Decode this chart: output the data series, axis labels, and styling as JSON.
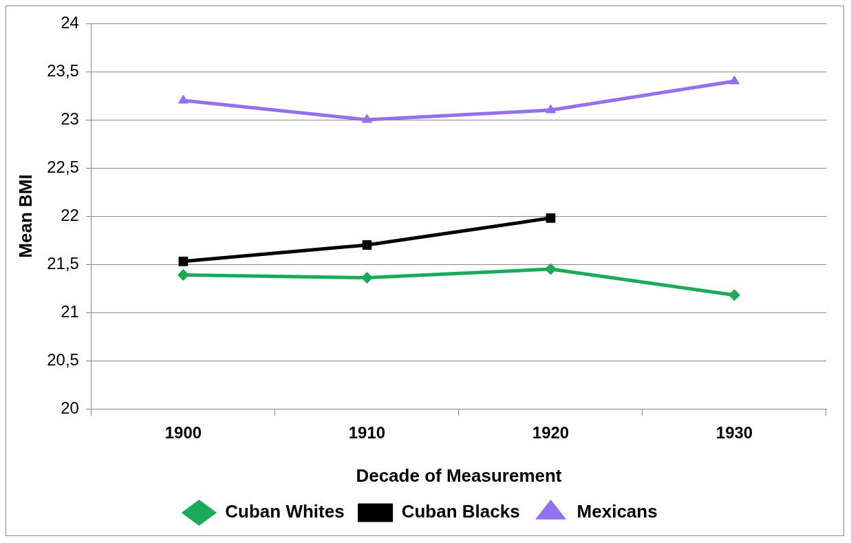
{
  "chart_data": {
    "type": "line",
    "xlabel": "Decade of Measurement",
    "ylabel": "Mean BMI",
    "categories": [
      "1900",
      "1910",
      "1920",
      "1930"
    ],
    "series": [
      {
        "name": "Cuban Whites",
        "color": "#1aab5a",
        "marker": "diamond",
        "values": [
          21.39,
          21.36,
          21.45,
          21.18
        ]
      },
      {
        "name": "Cuban Blacks",
        "color": "#000000",
        "marker": "square",
        "values": [
          21.53,
          21.7,
          21.98,
          null
        ]
      },
      {
        "name": "Mexicans",
        "color": "#9370f0",
        "marker": "triangle",
        "values": [
          23.2,
          23.0,
          23.1,
          23.4
        ]
      }
    ],
    "ylim": [
      20,
      24
    ],
    "yticks": [
      20,
      {
        "value": 20.5,
        "label": "20,5"
      },
      21,
      {
        "value": 21.5,
        "label": "21,5"
      },
      22,
      {
        "value": 22.5,
        "label": "22,5"
      },
      23,
      {
        "value": 23.5,
        "label": "23,5"
      },
      24
    ],
    "grid": "y",
    "legend": "bottom",
    "line_style": "solid"
  }
}
